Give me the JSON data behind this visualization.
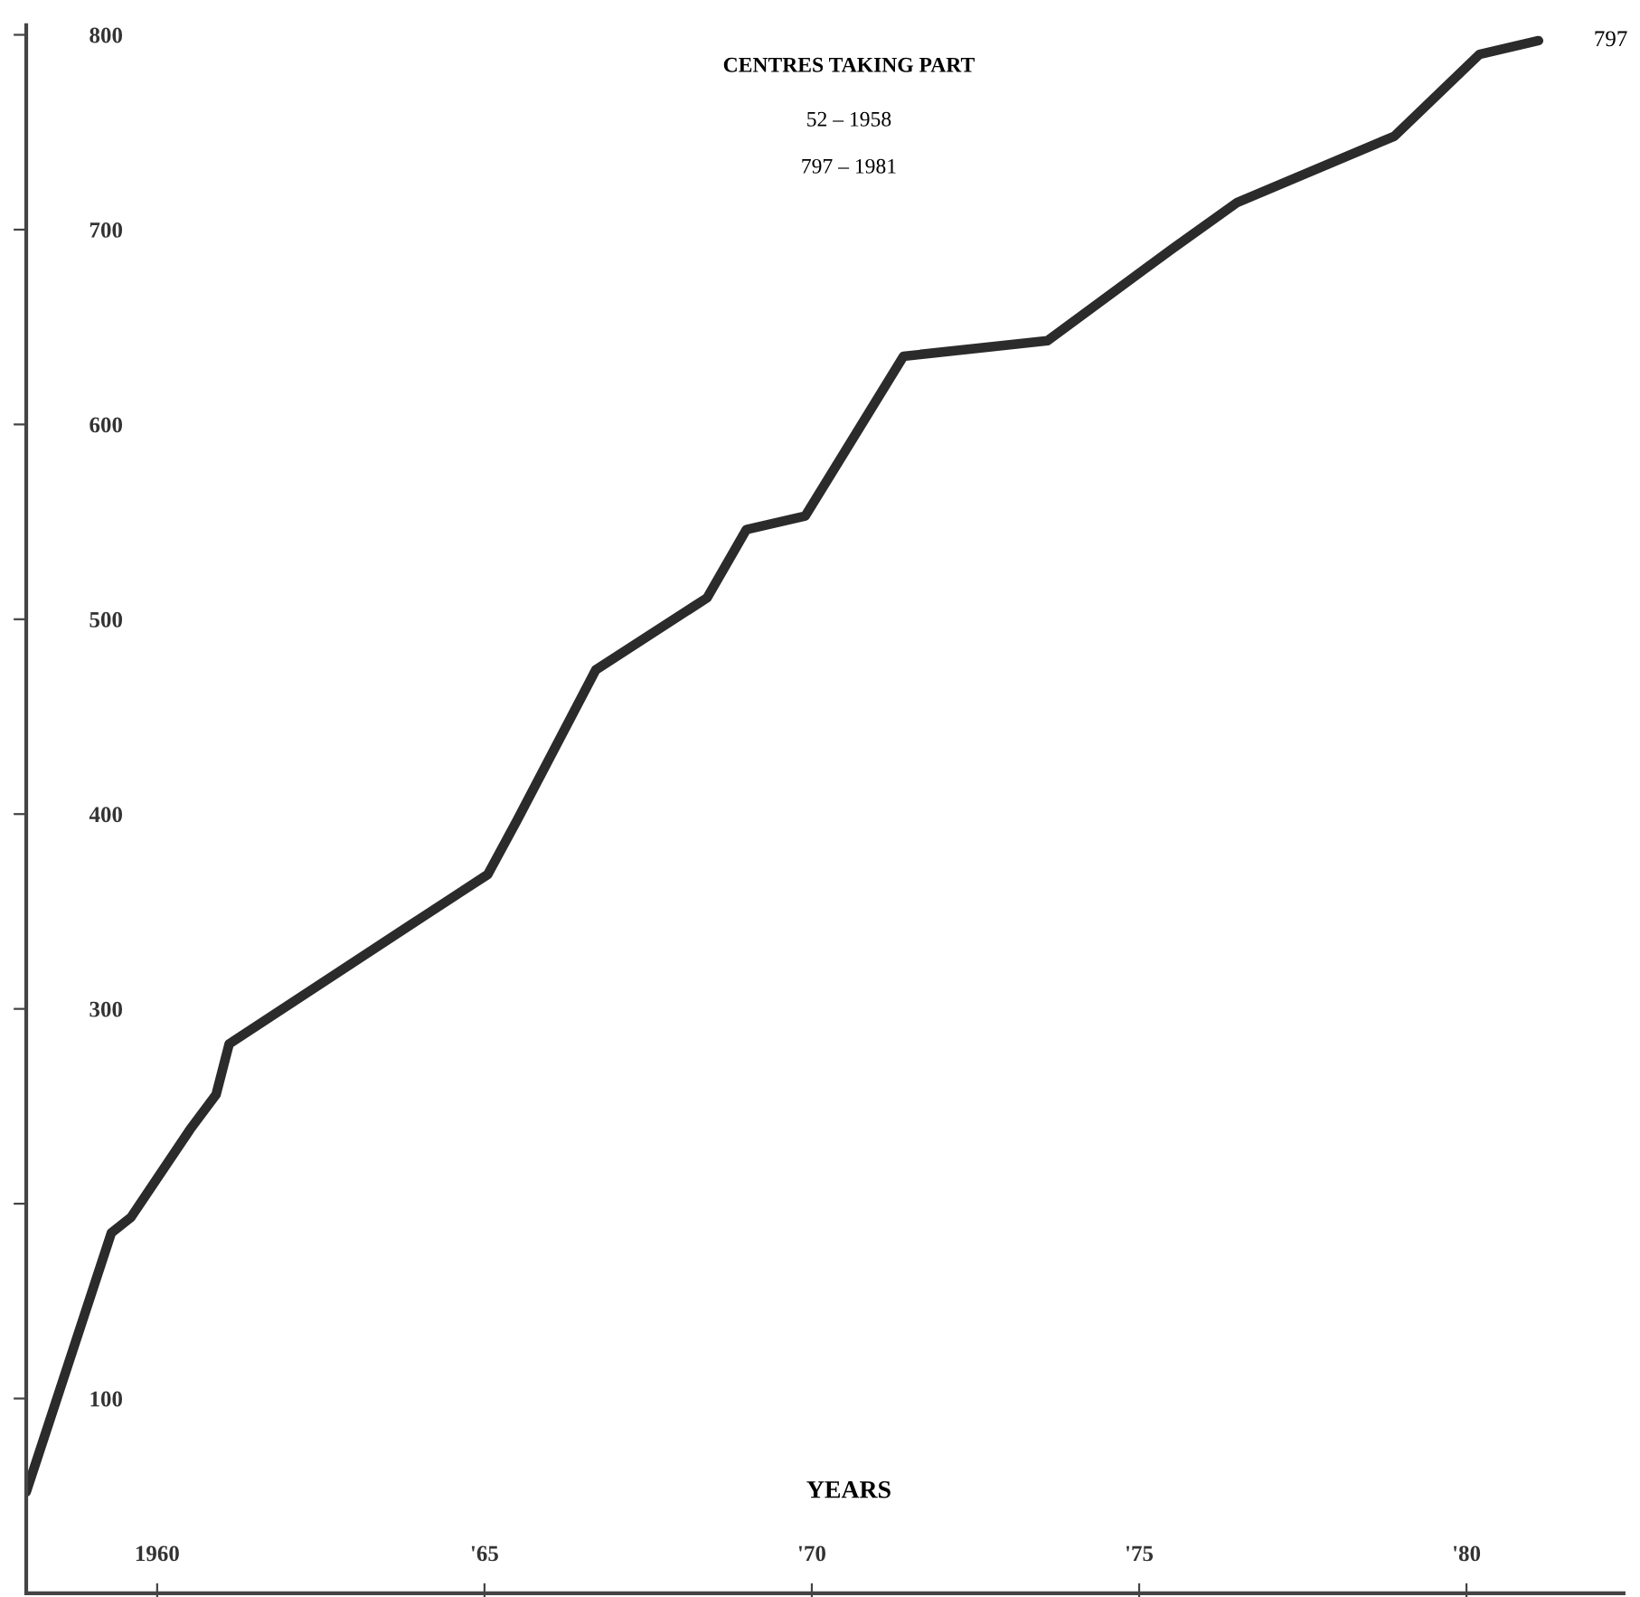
{
  "chart_data": {
    "type": "line",
    "title": "CENTRES TAKING PART",
    "xlabel": "YEARS",
    "annotations": [
      "52 – 1958",
      "797 – 1981",
      {
        "text": "797",
        "x": 1981.1,
        "y": 797
      }
    ],
    "x": [
      1958.0,
      1959.3,
      1959.6,
      1960.5,
      1960.9,
      1961.1,
      1964.0,
      1965.05,
      1965.5,
      1966.7,
      1968.4,
      1969.0,
      1969.9,
      1971.4,
      1973.6,
      1975.5,
      1976.5,
      1978.9,
      1980.2,
      1981.1
    ],
    "series": [
      {
        "color": "#2b2b2b",
        "values": [
          52,
          185,
          193,
          238,
          256,
          282,
          346,
          369,
          397,
          474,
          511,
          546,
          553,
          635,
          643,
          690,
          714,
          748,
          790,
          797
        ]
      }
    ],
    "xlim": [
      1958,
      1982.4
    ],
    "ylim": [
      0,
      805
    ],
    "xticks": [
      {
        "value": 1960,
        "label": "1960"
      },
      {
        "value": 1965,
        "label": "'65"
      },
      {
        "value": 1970,
        "label": "'70"
      },
      {
        "value": 1975,
        "label": "'75"
      },
      {
        "value": 1980,
        "label": "'80"
      }
    ],
    "yticks": [
      {
        "value": 100,
        "label": "100"
      },
      {
        "value": 200,
        "label": null
      },
      300,
      400,
      500,
      600,
      700,
      800
    ],
    "grid": false,
    "legend": false,
    "marker": "none",
    "line_style": "solid"
  }
}
